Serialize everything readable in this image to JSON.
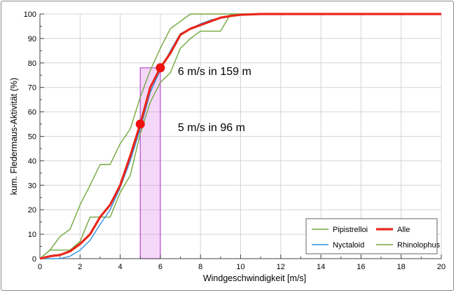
{
  "chart_data": {
    "type": "line",
    "xlabel": "Windgeschwindigkeit [m/s]",
    "ylabel": "kum. Fledermaus-Aktivität (%)",
    "xlim": [
      0,
      20
    ],
    "ylim": [
      0,
      100
    ],
    "xticks": [
      0,
      2,
      4,
      6,
      8,
      10,
      12,
      14,
      16,
      18,
      20
    ],
    "yticks": [
      0,
      10,
      20,
      30,
      40,
      50,
      60,
      70,
      80,
      90,
      100
    ],
    "grid": true,
    "legend_position": "bottom-right",
    "series": [
      {
        "name": "Pipistrelloi",
        "color": "#73a73c",
        "x": [
          0,
          0.5,
          1,
          1.5,
          2,
          2.5,
          3,
          3.5,
          4,
          4.5,
          5,
          5.5,
          6,
          6.5,
          7,
          7.5,
          8,
          8.5,
          9,
          9.5,
          10,
          20
        ],
        "y": [
          0,
          3.5,
          9,
          12,
          22,
          30,
          38.5,
          38.5,
          47,
          53,
          66,
          77,
          86,
          94,
          97,
          100,
          100,
          100,
          100,
          100,
          100,
          100
        ]
      },
      {
        "name": "Alle",
        "color": "#e8271a",
        "x": [
          0,
          0.5,
          1,
          1.5,
          2,
          2.5,
          3,
          3.5,
          4,
          4.5,
          5,
          5.5,
          6,
          6.5,
          7,
          7.5,
          8,
          8.5,
          9,
          9.5,
          10,
          11,
          20
        ],
        "y": [
          0,
          1,
          1.5,
          3,
          6,
          10,
          17,
          22,
          30,
          42,
          55,
          70,
          78,
          84,
          91.5,
          94,
          95.5,
          97,
          98.5,
          99.2,
          99.7,
          100,
          100
        ]
      },
      {
        "name": "Nyctaloid",
        "color": "#2f8fe0",
        "x": [
          0,
          1,
          1.5,
          2,
          2.5,
          3,
          3.5,
          4,
          4.5,
          5,
          5.5,
          6,
          6.5,
          7,
          7.5,
          8,
          8.5,
          9,
          9.5,
          10,
          11,
          20
        ],
        "y": [
          0,
          0,
          1,
          3.5,
          7.5,
          14,
          20,
          29,
          40,
          53,
          68,
          77,
          85,
          92,
          94,
          96,
          97.5,
          98.5,
          99.3,
          99.8,
          100,
          100
        ]
      },
      {
        "name": "Rhinolophus",
        "color": "#73a73c",
        "x": [
          0,
          0.5,
          1,
          1.5,
          2,
          2.5,
          3,
          3.5,
          4,
          4.5,
          5,
          5.5,
          6,
          6.5,
          7,
          7.5,
          8,
          8.5,
          9,
          9.5,
          10,
          20
        ],
        "y": [
          0,
          3.5,
          3.5,
          3.5,
          7,
          17,
          17,
          17,
          27,
          34,
          51,
          64,
          72,
          76,
          86,
          90,
          93,
          93,
          93,
          100,
          100,
          100
        ]
      }
    ],
    "markers": [
      {
        "x": 5,
        "y": 55,
        "label": "5 m/s in 96 m"
      },
      {
        "x": 6,
        "y": 78,
        "label": "6 m/s in 159 m"
      }
    ],
    "highlight_range": {
      "x0": 5,
      "x1": 6,
      "y1": 78
    }
  }
}
